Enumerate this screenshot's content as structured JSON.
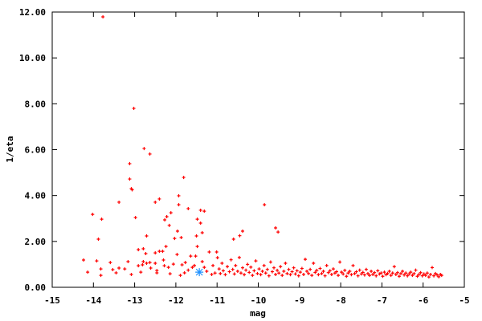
{
  "chart_data": {
    "type": "scatter",
    "title": "",
    "xlabel": "mag",
    "ylabel": "1/eta",
    "xlim": [
      -15,
      -5
    ],
    "ylim": [
      0,
      12
    ],
    "xticks": [
      "-15",
      "-14",
      "-13",
      "-12",
      "-11",
      "-10",
      "-9",
      "-8",
      "-7",
      "-6",
      "-5"
    ],
    "yticks": [
      "0.00",
      "2.00",
      "4.00",
      "6.00",
      "8.00",
      "10.00",
      "12.00"
    ],
    "grid": false,
    "legend": "none",
    "series": [
      {
        "color": "#ff0000",
        "marker": "plus",
        "points": [
          [
            -13.77,
            11.79
          ],
          [
            -13.02,
            7.8
          ],
          [
            -12.77,
            6.05
          ],
          [
            -12.63,
            5.81
          ],
          [
            -13.12,
            5.39
          ],
          [
            -13.12,
            4.72
          ],
          [
            -13.08,
            4.3
          ],
          [
            -13.06,
            4.25
          ],
          [
            -11.81,
            4.79
          ],
          [
            -14.02,
            3.18
          ],
          [
            -13.8,
            2.97
          ],
          [
            -12.5,
            3.71
          ],
          [
            -13.38,
            3.71
          ],
          [
            -12.4,
            3.85
          ],
          [
            -11.93,
            3.99
          ],
          [
            -11.93,
            3.6
          ],
          [
            -11.7,
            3.43
          ],
          [
            -11.4,
            3.36
          ],
          [
            -11.31,
            3.32
          ],
          [
            -12.12,
            3.25
          ],
          [
            -12.22,
            3.08
          ],
          [
            -12.27,
            2.94
          ],
          [
            -12.16,
            2.7
          ],
          [
            -11.96,
            2.45
          ],
          [
            -12.03,
            2.13
          ],
          [
            -12.71,
            2.24
          ],
          [
            -13.88,
            2.1
          ],
          [
            -11.5,
            2.24
          ],
          [
            -11.36,
            2.38
          ],
          [
            -9.85,
            3.6
          ],
          [
            -9.58,
            2.59
          ],
          [
            -9.52,
            2.41
          ],
          [
            -10.38,
            2.45
          ],
          [
            -10.6,
            2.1
          ],
          [
            -10.45,
            2.25
          ],
          [
            -11.87,
            2.17
          ],
          [
            -11.48,
            2.97
          ],
          [
            -11.4,
            2.8
          ],
          [
            -12.98,
            3.04
          ],
          [
            -14.24,
            1.19
          ],
          [
            -14.14,
            0.66
          ],
          [
            -13.92,
            1.15
          ],
          [
            -13.82,
            0.8
          ],
          [
            -13.82,
            0.52
          ],
          [
            -13.59,
            1.08
          ],
          [
            -13.53,
            0.77
          ],
          [
            -13.45,
            0.63
          ],
          [
            -13.38,
            0.84
          ],
          [
            -13.24,
            0.8
          ],
          [
            -13.16,
            1.12
          ],
          [
            -13.08,
            0.56
          ],
          [
            -12.91,
            1.64
          ],
          [
            -12.91,
            0.94
          ],
          [
            -12.85,
            0.66
          ],
          [
            -12.81,
            0.98
          ],
          [
            -12.79,
            1.68
          ],
          [
            -12.79,
            1.12
          ],
          [
            -12.73,
            1.47
          ],
          [
            -12.71,
            1.05
          ],
          [
            -12.63,
            1.08
          ],
          [
            -12.61,
            0.84
          ],
          [
            -12.5,
            1.5
          ],
          [
            -12.5,
            1.05
          ],
          [
            -12.46,
            0.73
          ],
          [
            -12.46,
            0.63
          ],
          [
            -12.4,
            1.57
          ],
          [
            -12.32,
            1.57
          ],
          [
            -12.3,
            1.19
          ],
          [
            -12.28,
            0.94
          ],
          [
            -12.24,
            1.78
          ],
          [
            -12.18,
            0.87
          ],
          [
            -12.14,
            0.59
          ],
          [
            -12.06,
            1.01
          ],
          [
            -11.97,
            1.43
          ],
          [
            -11.89,
            0.52
          ],
          [
            -11.85,
            0.98
          ],
          [
            -11.79,
            0.63
          ],
          [
            -11.77,
            1.08
          ],
          [
            -11.64,
            1.36
          ],
          [
            -11.6,
            0.87
          ],
          [
            -11.52,
            1.36
          ],
          [
            -11.48,
            1.78
          ],
          [
            -11.36,
            1.12
          ],
          [
            -11.31,
            0.87
          ],
          [
            -11.19,
            1.54
          ],
          [
            -11.13,
            0.56
          ],
          [
            -11.01,
            1.54
          ],
          [
            -10.99,
            1.29
          ],
          [
            -11.7,
            0.75
          ],
          [
            -11.55,
            0.95
          ],
          [
            -11.25,
            0.7
          ],
          [
            -11.1,
            0.95
          ],
          [
            -11.05,
            0.62
          ],
          [
            -10.95,
            0.8
          ],
          [
            -10.92,
            0.6
          ],
          [
            -10.88,
            1.05
          ],
          [
            -10.85,
            0.72
          ],
          [
            -10.8,
            0.55
          ],
          [
            -10.75,
            0.9
          ],
          [
            -10.7,
            0.68
          ],
          [
            -10.66,
            1.2
          ],
          [
            -10.62,
            0.78
          ],
          [
            -10.58,
            0.58
          ],
          [
            -10.55,
            0.95
          ],
          [
            -10.5,
            0.7
          ],
          [
            -10.46,
            1.3
          ],
          [
            -10.42,
            0.62
          ],
          [
            -10.38,
            0.85
          ],
          [
            -10.34,
            0.55
          ],
          [
            -10.3,
            0.75
          ],
          [
            -10.26,
            1.0
          ],
          [
            -10.22,
            0.65
          ],
          [
            -10.18,
            0.88
          ],
          [
            -10.14,
            0.52
          ],
          [
            -10.1,
            0.72
          ],
          [
            -10.06,
            1.15
          ],
          [
            -10.02,
            0.6
          ],
          [
            -9.98,
            0.8
          ],
          [
            -9.94,
            0.55
          ],
          [
            -9.9,
            0.7
          ],
          [
            -9.86,
            0.95
          ],
          [
            -9.82,
            0.62
          ],
          [
            -9.78,
            0.78
          ],
          [
            -9.74,
            0.5
          ],
          [
            -9.7,
            1.1
          ],
          [
            -9.66,
            0.68
          ],
          [
            -9.62,
            0.85
          ],
          [
            -9.58,
            0.56
          ],
          [
            -9.54,
            0.74
          ],
          [
            -9.5,
            0.62
          ],
          [
            -9.46,
            0.9
          ],
          [
            -9.42,
            0.52
          ],
          [
            -9.38,
            0.7
          ],
          [
            -9.34,
            1.05
          ],
          [
            -9.3,
            0.6
          ],
          [
            -9.26,
            0.78
          ],
          [
            -9.22,
            0.55
          ],
          [
            -9.18,
            0.68
          ],
          [
            -9.14,
            0.85
          ],
          [
            -9.1,
            0.58
          ],
          [
            -9.06,
            0.72
          ],
          [
            -9.02,
            0.5
          ],
          [
            -8.98,
            0.66
          ],
          [
            -8.94,
            0.82
          ],
          [
            -8.9,
            0.56
          ],
          [
            -8.86,
            1.22
          ],
          [
            -8.82,
            0.7
          ],
          [
            -8.78,
            0.6
          ],
          [
            -8.74,
            0.78
          ],
          [
            -8.7,
            0.52
          ],
          [
            -8.66,
            1.05
          ],
          [
            -8.62,
            0.65
          ],
          [
            -8.58,
            0.74
          ],
          [
            -8.54,
            0.55
          ],
          [
            -8.5,
            0.82
          ],
          [
            -8.46,
            0.6
          ],
          [
            -8.42,
            0.7
          ],
          [
            -8.38,
            0.5
          ],
          [
            -8.34,
            0.95
          ],
          [
            -8.3,
            0.64
          ],
          [
            -8.26,
            0.72
          ],
          [
            -8.22,
            0.56
          ],
          [
            -8.18,
            0.8
          ],
          [
            -8.14,
            0.62
          ],
          [
            -8.1,
            0.68
          ],
          [
            -8.06,
            0.52
          ],
          [
            -8.02,
            1.1
          ],
          [
            -7.98,
            0.66
          ],
          [
            -7.94,
            0.58
          ],
          [
            -7.9,
            0.74
          ],
          [
            -7.86,
            0.48
          ],
          [
            -7.82,
            0.62
          ],
          [
            -7.78,
            0.7
          ],
          [
            -7.74,
            0.55
          ],
          [
            -7.7,
            0.95
          ],
          [
            -7.66,
            0.6
          ],
          [
            -7.62,
            0.68
          ],
          [
            -7.58,
            0.5
          ],
          [
            -7.54,
            0.75
          ],
          [
            -7.5,
            0.58
          ],
          [
            -7.46,
            0.65
          ],
          [
            -7.42,
            0.54
          ],
          [
            -7.38,
            0.78
          ],
          [
            -7.34,
            0.6
          ],
          [
            -7.3,
            0.52
          ],
          [
            -7.26,
            0.7
          ],
          [
            -7.22,
            0.56
          ],
          [
            -7.18,
            0.64
          ],
          [
            -7.14,
            0.5
          ],
          [
            -7.1,
            0.72
          ],
          [
            -7.06,
            0.58
          ],
          [
            -7.02,
            0.62
          ],
          [
            -6.98,
            0.48
          ],
          [
            -6.94,
            0.66
          ],
          [
            -6.9,
            0.55
          ],
          [
            -6.86,
            0.6
          ],
          [
            -6.82,
            0.7
          ],
          [
            -6.78,
            0.52
          ],
          [
            -6.74,
            0.62
          ],
          [
            -6.7,
            0.9
          ],
          [
            -6.66,
            0.56
          ],
          [
            -6.62,
            0.64
          ],
          [
            -6.58,
            0.48
          ],
          [
            -6.54,
            0.6
          ],
          [
            -6.5,
            0.7
          ],
          [
            -6.46,
            0.54
          ],
          [
            -6.42,
            0.62
          ],
          [
            -6.38,
            0.5
          ],
          [
            -6.34,
            0.58
          ],
          [
            -6.3,
            0.66
          ],
          [
            -6.26,
            0.52
          ],
          [
            -6.22,
            0.6
          ],
          [
            -6.18,
            0.75
          ],
          [
            -6.14,
            0.48
          ],
          [
            -6.1,
            0.56
          ],
          [
            -6.06,
            0.64
          ],
          [
            -6.02,
            0.5
          ],
          [
            -5.98,
            0.58
          ],
          [
            -5.94,
            0.52
          ],
          [
            -5.9,
            0.62
          ],
          [
            -5.86,
            0.45
          ],
          [
            -5.82,
            0.56
          ],
          [
            -5.78,
            0.86
          ],
          [
            -5.74,
            0.5
          ],
          [
            -5.7,
            0.6
          ],
          [
            -5.66,
            0.54
          ],
          [
            -5.62,
            0.46
          ],
          [
            -5.58,
            0.56
          ],
          [
            -5.55,
            0.52
          ]
        ]
      },
      {
        "color": "#1e90ff",
        "marker": "star",
        "points": [
          [
            -11.43,
            0.66
          ]
        ]
      }
    ]
  }
}
